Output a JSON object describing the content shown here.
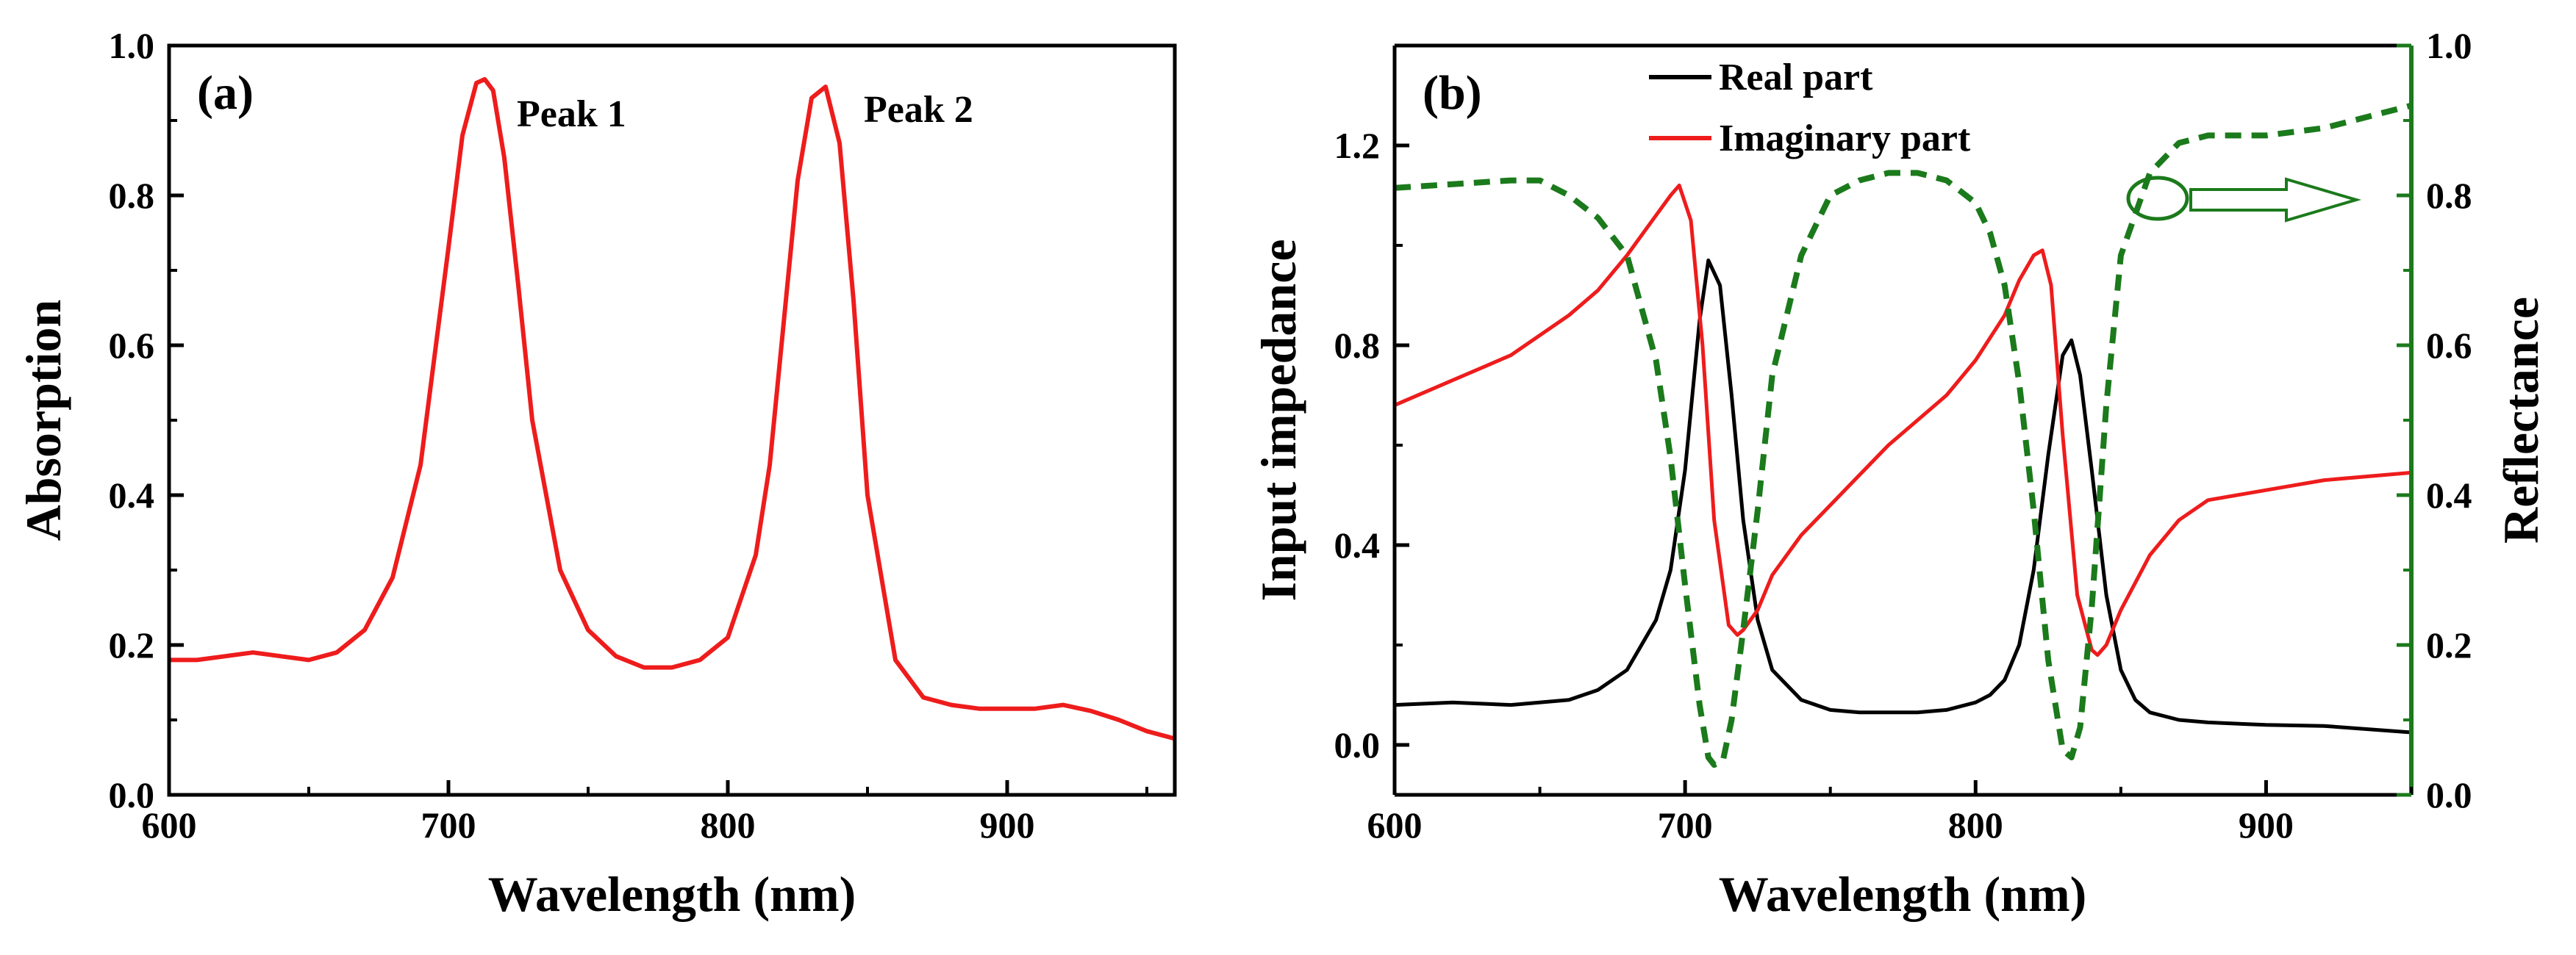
{
  "colors": {
    "axis": "#000000",
    "absorption": "#ee1c1c",
    "real": "#000000",
    "imag": "#ee1c1c",
    "reflectance": "#1b7a1b"
  },
  "chart_data": [
    {
      "id": "a",
      "type": "line",
      "panel_label": "(a)",
      "xlabel": "Wavelength (nm)",
      "ylabel": "Absorption",
      "xlim": [
        600,
        960
      ],
      "ylim": [
        0.0,
        1.0
      ],
      "xticks": [
        600,
        700,
        800,
        900
      ],
      "xtick_labels": [
        "600",
        "700",
        "800",
        "900"
      ],
      "yticks": [
        0.0,
        0.2,
        0.4,
        0.6,
        0.8,
        1.0
      ],
      "ytick_labels": [
        "0.0",
        "0.2",
        "0.4",
        "0.6",
        "0.8",
        "1.0"
      ],
      "annotations": [
        "Peak 1",
        "Peak 2"
      ],
      "series": [
        {
          "name": "Absorption",
          "x": [
            600,
            610,
            620,
            630,
            640,
            650,
            660,
            670,
            680,
            690,
            700,
            705,
            710,
            713,
            716,
            720,
            725,
            730,
            740,
            750,
            760,
            770,
            780,
            790,
            800,
            810,
            815,
            820,
            825,
            830,
            835,
            840,
            845,
            850,
            860,
            870,
            880,
            890,
            900,
            910,
            920,
            930,
            940,
            950,
            960
          ],
          "y": [
            0.18,
            0.18,
            0.185,
            0.19,
            0.185,
            0.18,
            0.19,
            0.22,
            0.29,
            0.44,
            0.73,
            0.88,
            0.95,
            0.955,
            0.94,
            0.85,
            0.68,
            0.5,
            0.3,
            0.22,
            0.185,
            0.17,
            0.17,
            0.18,
            0.21,
            0.32,
            0.44,
            0.63,
            0.82,
            0.93,
            0.945,
            0.87,
            0.66,
            0.4,
            0.18,
            0.13,
            0.12,
            0.115,
            0.115,
            0.115,
            0.12,
            0.112,
            0.1,
            0.085,
            0.075
          ]
        }
      ]
    },
    {
      "id": "b",
      "type": "line",
      "panel_label": "(b)",
      "xlabel": "Wavelength (nm)",
      "ylabel": "Input impedance",
      "y2label": "Reflectance",
      "xlim": [
        600,
        950
      ],
      "ylim": [
        -0.1,
        1.4
      ],
      "y2lim": [
        0.0,
        1.0
      ],
      "xticks": [
        600,
        700,
        800,
        900
      ],
      "xtick_labels": [
        "600",
        "700",
        "800",
        "900"
      ],
      "yticks": [
        0.0,
        0.4,
        0.8,
        1.2
      ],
      "ytick_labels": [
        "0.0",
        "0.4",
        "0.8",
        "1.2"
      ],
      "y2ticks": [
        0.0,
        0.2,
        0.4,
        0.6,
        0.8,
        1.0
      ],
      "y2tick_labels": [
        "0.0",
        "0.2",
        "0.4",
        "0.6",
        "0.8",
        "1.0"
      ],
      "legend": [
        "Real part",
        "Imaginary part"
      ],
      "legend_position": "top-center",
      "series": [
        {
          "name": "Real part",
          "axis": "left",
          "x": [
            600,
            620,
            640,
            660,
            670,
            680,
            690,
            695,
            700,
            705,
            708,
            712,
            716,
            720,
            725,
            730,
            740,
            750,
            760,
            770,
            780,
            790,
            800,
            805,
            810,
            815,
            820,
            825,
            830,
            833,
            836,
            840,
            845,
            850,
            855,
            860,
            870,
            880,
            900,
            920,
            950
          ],
          "y": [
            0.08,
            0.085,
            0.08,
            0.09,
            0.11,
            0.15,
            0.25,
            0.35,
            0.55,
            0.85,
            0.97,
            0.92,
            0.7,
            0.45,
            0.25,
            0.15,
            0.09,
            0.07,
            0.065,
            0.065,
            0.065,
            0.07,
            0.085,
            0.1,
            0.13,
            0.2,
            0.35,
            0.58,
            0.78,
            0.81,
            0.74,
            0.55,
            0.3,
            0.15,
            0.09,
            0.065,
            0.05,
            0.045,
            0.04,
            0.038,
            0.025
          ]
        },
        {
          "name": "Imaginary part",
          "axis": "left",
          "x": [
            600,
            620,
            640,
            660,
            670,
            680,
            690,
            695,
            698,
            702,
            706,
            710,
            715,
            718,
            720,
            725,
            730,
            740,
            750,
            760,
            770,
            780,
            790,
            800,
            810,
            815,
            820,
            823,
            826,
            830,
            835,
            840,
            842,
            845,
            850,
            860,
            870,
            880,
            900,
            920,
            950
          ],
          "y": [
            0.68,
            0.73,
            0.78,
            0.86,
            0.91,
            0.98,
            1.06,
            1.1,
            1.12,
            1.05,
            0.8,
            0.45,
            0.24,
            0.22,
            0.23,
            0.27,
            0.34,
            0.42,
            0.48,
            0.54,
            0.6,
            0.65,
            0.7,
            0.77,
            0.86,
            0.93,
            0.98,
            0.99,
            0.92,
            0.62,
            0.3,
            0.19,
            0.18,
            0.2,
            0.27,
            0.38,
            0.45,
            0.49,
            0.51,
            0.53,
            0.545
          ]
        },
        {
          "name": "Reflectance",
          "axis": "right",
          "dashed": true,
          "x": [
            600,
            620,
            640,
            650,
            660,
            670,
            680,
            690,
            695,
            700,
            705,
            708,
            710,
            713,
            716,
            720,
            725,
            730,
            740,
            750,
            760,
            770,
            780,
            790,
            800,
            805,
            810,
            815,
            820,
            825,
            830,
            833,
            836,
            840,
            845,
            850,
            860,
            870,
            880,
            900,
            920,
            940,
            950
          ],
          "y": [
            0.81,
            0.815,
            0.82,
            0.82,
            0.8,
            0.77,
            0.72,
            0.58,
            0.45,
            0.28,
            0.12,
            0.05,
            0.04,
            0.045,
            0.1,
            0.22,
            0.38,
            0.56,
            0.72,
            0.8,
            0.82,
            0.83,
            0.83,
            0.82,
            0.79,
            0.75,
            0.68,
            0.55,
            0.38,
            0.18,
            0.06,
            0.05,
            0.09,
            0.25,
            0.52,
            0.72,
            0.83,
            0.87,
            0.88,
            0.88,
            0.89,
            0.91,
            0.92
          ]
        }
      ]
    }
  ]
}
